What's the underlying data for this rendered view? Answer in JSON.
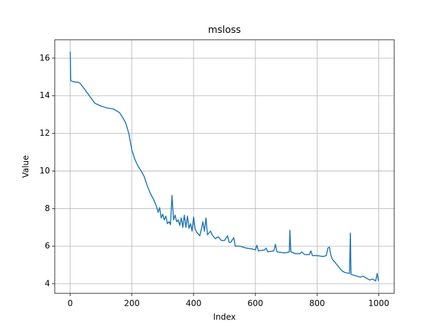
{
  "chart_data": {
    "type": "line",
    "title": "msloss",
    "xlabel": "Index",
    "ylabel": "Value",
    "x": [
      0,
      2,
      10,
      30,
      40,
      60,
      80,
      100,
      120,
      140,
      160,
      170,
      180,
      190,
      200,
      210,
      220,
      230,
      240,
      250,
      260,
      270,
      275,
      280,
      285,
      290,
      295,
      300,
      305,
      310,
      315,
      320,
      325,
      330,
      335,
      340,
      345,
      350,
      355,
      360,
      365,
      370,
      375,
      380,
      385,
      390,
      395,
      400,
      405,
      410,
      415,
      420,
      425,
      430,
      435,
      440,
      445,
      450,
      455,
      460,
      470,
      480,
      490,
      500,
      510,
      515,
      520,
      530,
      535,
      550,
      570,
      590,
      600,
      605,
      610,
      630,
      635,
      640,
      660,
      665,
      670,
      690,
      700,
      710,
      712,
      715,
      730,
      745,
      750,
      760,
      775,
      780,
      785,
      800,
      820,
      830,
      835,
      840,
      845,
      850,
      860,
      870,
      880,
      890,
      905,
      908,
      910,
      920,
      930,
      940,
      950,
      960,
      970,
      980,
      990,
      995,
      999
    ],
    "series": [
      {
        "name": "msloss",
        "color": "#1f77b4",
        "values": [
          16.35,
          14.8,
          14.75,
          14.7,
          14.5,
          14.05,
          13.6,
          13.45,
          13.35,
          13.3,
          13.1,
          12.85,
          12.55,
          12.0,
          11.1,
          10.6,
          10.25,
          10.0,
          9.7,
          9.2,
          8.8,
          8.5,
          8.3,
          8.1,
          7.8,
          8.05,
          7.5,
          7.7,
          7.4,
          7.6,
          7.2,
          7.3,
          7.15,
          8.7,
          7.4,
          7.65,
          7.3,
          7.4,
          7.1,
          7.5,
          7.0,
          7.65,
          7.0,
          7.6,
          6.95,
          7.2,
          6.8,
          7.55,
          6.9,
          6.75,
          6.65,
          6.55,
          6.9,
          7.3,
          6.8,
          7.5,
          6.6,
          6.7,
          6.8,
          6.6,
          6.4,
          6.5,
          6.3,
          6.3,
          6.55,
          6.2,
          6.2,
          6.45,
          6.0,
          6.0,
          5.9,
          5.85,
          5.8,
          6.05,
          5.75,
          5.8,
          5.9,
          5.7,
          5.75,
          6.1,
          5.7,
          5.65,
          5.65,
          5.7,
          6.85,
          5.7,
          5.6,
          5.6,
          5.7,
          5.55,
          5.55,
          5.75,
          5.5,
          5.5,
          5.45,
          5.5,
          5.9,
          5.95,
          5.5,
          5.3,
          5.1,
          4.9,
          4.7,
          4.6,
          4.55,
          6.7,
          4.5,
          4.45,
          4.4,
          4.35,
          4.4,
          4.3,
          4.2,
          4.25,
          4.15,
          4.55,
          4.15
        ]
      }
    ],
    "xlim": [
      -50,
      1050
    ],
    "xticks": [
      0,
      200,
      400,
      600,
      800,
      1000
    ],
    "ylim": [
      3.49,
      16.98
    ],
    "yticks": [
      4,
      6,
      8,
      10,
      12,
      14,
      16
    ],
    "grid": true
  }
}
